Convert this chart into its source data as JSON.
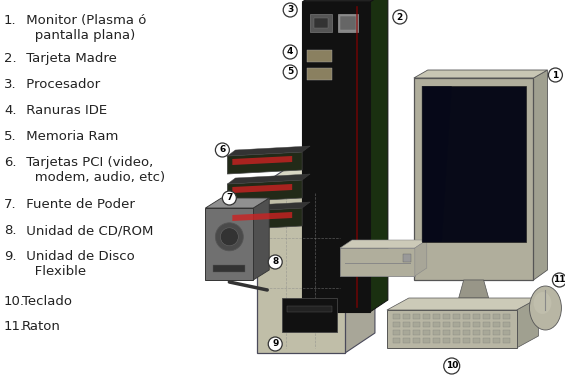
{
  "background_color": "#ffffff",
  "text_color": "#1a1a1a",
  "items": [
    {
      "num": "1.",
      "indent": true,
      "line1": " Monitor (Plasma ó",
      "line2": "   pantalla plana)"
    },
    {
      "num": "2.",
      "indent": false,
      "line1": " Tarjeta Madre",
      "line2": null
    },
    {
      "num": "3.",
      "indent": false,
      "line1": " Procesador",
      "line2": null
    },
    {
      "num": "4.",
      "indent": false,
      "line1": " Ranuras IDE",
      "line2": null
    },
    {
      "num": "5.",
      "indent": false,
      "line1": " Memoria Ram",
      "line2": null
    },
    {
      "num": "6.",
      "indent": true,
      "line1": " Tarjetas PCI (video,",
      "line2": "   modem, audio, etc)"
    },
    {
      "num": "7.",
      "indent": false,
      "line1": " Fuente de Poder",
      "line2": null
    },
    {
      "num": "8.",
      "indent": false,
      "line1": " Unidad de CD/ROM",
      "line2": null
    },
    {
      "num": "9.",
      "indent": true,
      "line1": " Unidad de Disco",
      "line2": "   Flexible"
    },
    {
      "num": "10.",
      "indent": false,
      "line1": "Teclado",
      "line2": null
    },
    {
      "num": "11.",
      "indent": false,
      "line1": "Raton",
      "line2": null
    }
  ],
  "colors": {
    "bg": "#ffffff",
    "text": "#222222",
    "motherboard_front": "#111111",
    "motherboard_side": "#1a3010",
    "motherboard_top": "#222222",
    "case_front": "#c0bea8",
    "case_top": "#d8d6c4",
    "case_right": "#a8a698",
    "case_edge": "#4a4a5a",
    "ps_body": "#707070",
    "ps_top": "#909090",
    "ps_dark": "#505050",
    "monitor_body": "#b0ae9c",
    "monitor_screen": "#080a18",
    "monitor_base": "#989688",
    "kb_body": "#b8b6a4",
    "kb_top": "#cccab8",
    "mouse_body": "#b8b6a4",
    "pci_card": "#222a18",
    "pci_stripe": "#cc2222",
    "tray_body": "#b0ae9c",
    "floppy_body": "#111111",
    "dashed": "#888888"
  },
  "font_size": 9.5
}
